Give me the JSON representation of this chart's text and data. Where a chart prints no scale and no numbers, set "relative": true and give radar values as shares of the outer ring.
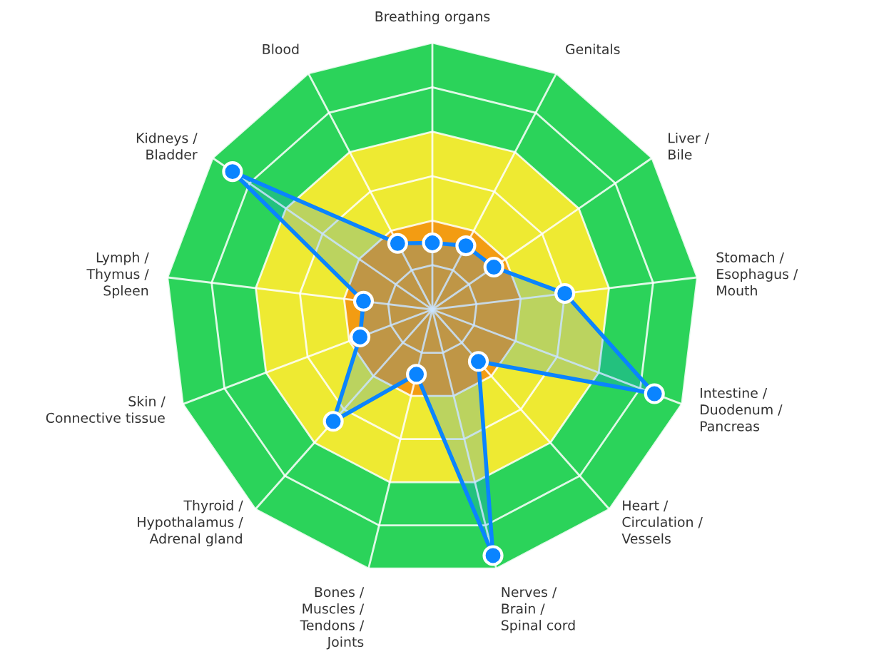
{
  "chart_data": {
    "type": "radar",
    "relative": true,
    "grid": true,
    "marker": "circle",
    "line_style": "solid",
    "categories": [
      "Breathing organs",
      "Genitals",
      "Liver /\nBile",
      "Stomach /\nEsophagus /\nMouth",
      "Intestine /\nDuodenum /\nPancreas",
      "Heart /\nCirculation /\nVessels",
      "Nerves /\nBrain /\nSpinal cord",
      "Bones /\nMuscles /\nTendons /\nJoints",
      "Thyroid /\nHypothalamus /\nAdrenal gland",
      "Skin /\nConnective tissue",
      "Lymph /\nThymus /\nSpleen",
      "Kidneys /\nBladder",
      "Blood"
    ],
    "series": [
      {
        "color": "#0a84ff",
        "values": [
          0.25,
          0.27,
          0.28,
          0.5,
          0.89,
          0.26,
          0.95,
          0.25,
          0.56,
          0.29,
          0.26,
          0.91,
          0.28
        ]
      }
    ]
  }
}
